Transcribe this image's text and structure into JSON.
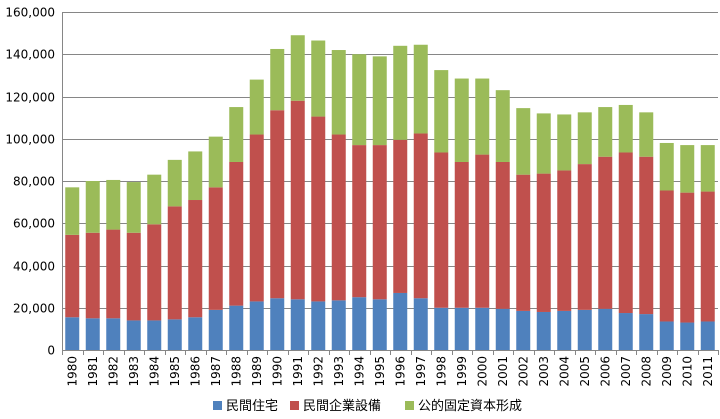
{
  "chart_data": {
    "type": "bar",
    "stacked": true,
    "title": "",
    "xlabel": "",
    "ylabel": "",
    "ylim": [
      0,
      160000
    ],
    "ytick_step": 20000,
    "grid": true,
    "legend_position": "bottom",
    "categories": [
      "1980",
      "1981",
      "1982",
      "1983",
      "1984",
      "1985",
      "1986",
      "1987",
      "1988",
      "1989",
      "1990",
      "1991",
      "1992",
      "1993",
      "1994",
      "1995",
      "1996",
      "1997",
      "1998",
      "1999",
      "2000",
      "2001",
      "2002",
      "2003",
      "2004",
      "2005",
      "2006",
      "2007",
      "2008",
      "2009",
      "2010",
      "2011"
    ],
    "series": [
      {
        "name": "民間住宅",
        "color": "#4F81BD",
        "values": [
          15500,
          15000,
          15000,
          14000,
          14000,
          14500,
          15500,
          19000,
          21000,
          23000,
          24500,
          24000,
          23000,
          23500,
          25000,
          24000,
          27000,
          24500,
          20000,
          20000,
          20000,
          19500,
          18500,
          18000,
          18500,
          19000,
          19500,
          17500,
          17000,
          13500,
          13000,
          13500
        ]
      },
      {
        "name": "民間企業設備",
        "color": "#C0504D",
        "values": [
          39000,
          40500,
          42000,
          41500,
          45500,
          53500,
          55500,
          58000,
          68000,
          79000,
          89000,
          94000,
          87500,
          78500,
          72000,
          73000,
          72500,
          78000,
          73500,
          69000,
          72500,
          69500,
          64500,
          65500,
          66500,
          69000,
          72000,
          76000,
          74500,
          62000,
          61500,
          61500
        ]
      },
      {
        "name": "公的固定資本形成",
        "color": "#9BBB59",
        "values": [
          22500,
          24500,
          23500,
          24000,
          23500,
          22000,
          23000,
          24000,
          26000,
          26000,
          29000,
          31000,
          36000,
          40000,
          43000,
          42000,
          44500,
          42000,
          39000,
          39500,
          36000,
          34000,
          31500,
          28500,
          26500,
          24500,
          23500,
          22500,
          21000,
          22500,
          22500,
          22000
        ]
      }
    ]
  }
}
